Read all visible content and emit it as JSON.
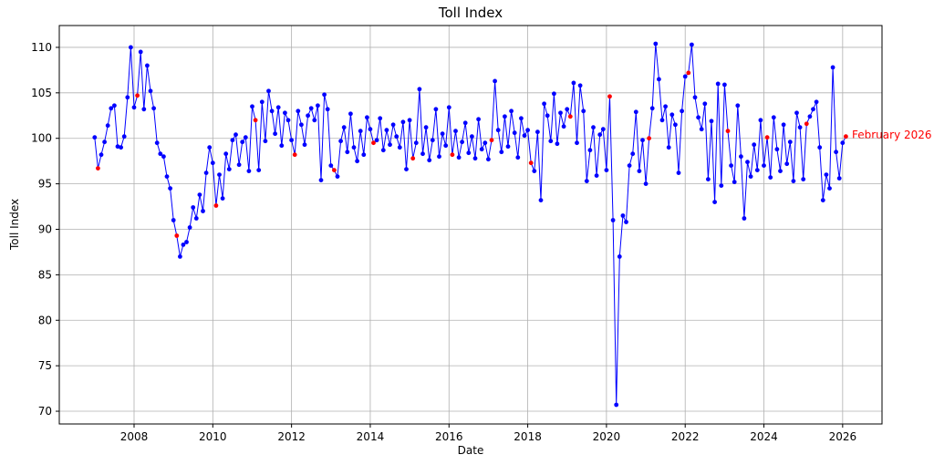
{
  "chart_data": {
    "type": "line",
    "title": "Toll Index",
    "xlabel": "Date",
    "ylabel": "Toll Index",
    "grid": true,
    "legend": "none",
    "line_color": "#0000ff",
    "marker_color": "#0000ff",
    "highlight_color": "#ff0000",
    "highlight_month": 2,
    "start": "2007-01",
    "end": "2026-02",
    "freq": "monthly",
    "xlim": [
      2006.1,
      2027.0
    ],
    "ylim": [
      68.6,
      112.4
    ],
    "xticks": [
      2008,
      2010,
      2012,
      2014,
      2016,
      2018,
      2020,
      2022,
      2024,
      2026
    ],
    "yticks": [
      70,
      75,
      80,
      85,
      90,
      95,
      100,
      105,
      110
    ],
    "annotation": {
      "text": "February 2026",
      "x": 2026.083,
      "y": 100.2,
      "color": "#ff0000"
    },
    "values": [
      100.1,
      96.7,
      98.2,
      99.6,
      101.4,
      103.3,
      103.6,
      99.1,
      99.0,
      100.2,
      104.5,
      110.0,
      103.4,
      104.7,
      109.5,
      103.2,
      108.0,
      105.2,
      103.3,
      99.5,
      98.3,
      98.0,
      95.8,
      94.5,
      91.0,
      89.3,
      87.0,
      88.3,
      88.6,
      90.2,
      92.4,
      91.2,
      93.8,
      92.0,
      96.2,
      99.0,
      97.3,
      92.6,
      96.0,
      93.4,
      98.3,
      96.6,
      99.8,
      100.4,
      97.1,
      99.6,
      100.1,
      96.4,
      103.5,
      102.0,
      96.5,
      104.0,
      99.7,
      105.2,
      103.0,
      100.5,
      103.4,
      99.2,
      102.8,
      102.0,
      99.8,
      98.2,
      103.0,
      101.5,
      99.3,
      102.5,
      103.3,
      102.0,
      103.6,
      95.4,
      104.8,
      103.2,
      97.0,
      96.5,
      95.8,
      99.7,
      101.2,
      98.5,
      102.7,
      99.0,
      97.5,
      100.8,
      98.2,
      102.3,
      101.0,
      99.5,
      99.8,
      102.2,
      98.7,
      100.9,
      99.3,
      101.5,
      100.2,
      99.0,
      101.8,
      96.6,
      102.0,
      97.8,
      99.5,
      105.4,
      98.3,
      101.2,
      97.6,
      99.8,
      103.2,
      98.0,
      100.5,
      99.2,
      103.4,
      98.2,
      100.8,
      97.9,
      99.6,
      101.7,
      98.4,
      100.2,
      97.8,
      102.1,
      98.8,
      99.5,
      97.7,
      99.8,
      106.3,
      100.9,
      98.5,
      102.4,
      99.1,
      103.0,
      100.6,
      97.9,
      102.2,
      100.3,
      100.9,
      97.3,
      96.4,
      100.7,
      93.2,
      103.8,
      102.5,
      99.7,
      104.9,
      99.4,
      102.8,
      101.3,
      103.2,
      102.4,
      106.1,
      99.5,
      105.8,
      103.0,
      95.3,
      98.7,
      101.2,
      95.9,
      100.4,
      101.0,
      96.5,
      104.6,
      91.0,
      70.7,
      87.0,
      91.5,
      90.8,
      97.0,
      98.3,
      102.9,
      96.4,
      99.8,
      95.0,
      100.0,
      103.3,
      110.4,
      106.5,
      102.0,
      103.5,
      99.0,
      102.6,
      101.5,
      96.2,
      103.0,
      106.8,
      107.2,
      110.3,
      104.5,
      102.3,
      101.0,
      103.8,
      95.5,
      101.9,
      93.0,
      106.0,
      94.8,
      105.9,
      100.8,
      97.0,
      95.2,
      103.6,
      98.0,
      91.2,
      97.4,
      95.8,
      99.3,
      96.5,
      102.0,
      97.0,
      100.1,
      95.7,
      102.3,
      98.8,
      96.4,
      101.5,
      97.2,
      99.6,
      95.3,
      102.8,
      101.2,
      95.5,
      101.6,
      102.4,
      103.2,
      104.0,
      99.0,
      93.2,
      96.0,
      94.5,
      107.8,
      98.5,
      95.6,
      99.5,
      100.2
    ]
  }
}
